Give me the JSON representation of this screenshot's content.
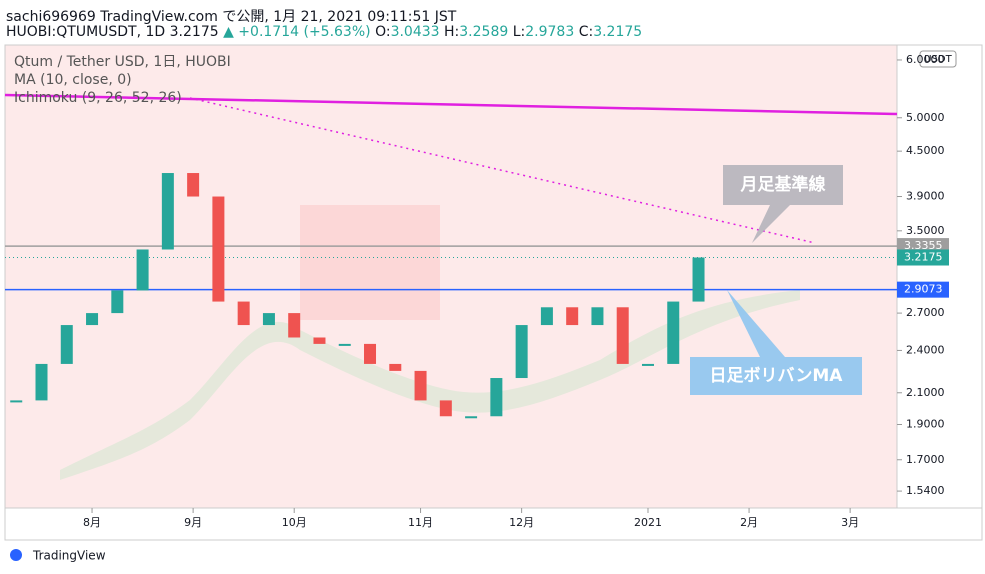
{
  "header": {
    "line1": "sachi696969 TradingView.com で公開, 1月 21, 2021 09:11:51 JST",
    "symbol": "HUOBI:QTUMUSDT, 1D 3.2175",
    "change": "▲ +0.1714 (+5.63%)",
    "o_label": "O:",
    "o": "3.0433",
    "h_label": "H:",
    "h": "3.2589",
    "l_label": "L:",
    "l": "2.9783",
    "c_label": "C:",
    "c": "3.2175"
  },
  "legend": [
    "Qtum / Tether USD, 1日, HUOBI",
    "MA (10, close, 0)",
    "Ichimoku (9, 26, 52, 26)"
  ],
  "annotations": [
    "月足基準線",
    "日足ボリバンMA"
  ],
  "currency": "USDT",
  "footer": "TradingView",
  "chart_data": {
    "type": "candlestick",
    "log_scale": true,
    "grid": false,
    "categories": [
      null,
      null,
      null,
      "8月",
      null,
      null,
      null,
      "9月",
      null,
      null,
      null,
      "10月",
      null,
      null,
      null,
      null,
      "11月",
      null,
      null,
      null,
      "12月",
      null,
      null,
      null,
      null,
      "2021",
      null,
      null,
      null,
      "2月",
      null,
      null,
      null,
      "3月",
      null
    ],
    "up_color": "#26a69a",
    "down_color": "#ef5350",
    "values": [
      2.05,
      2.3,
      2.6,
      2.7,
      2.9,
      3.3,
      4.2,
      3.9,
      2.8,
      2.6,
      2.7,
      2.5,
      2.45,
      2.45,
      2.3,
      2.25,
      2.05,
      1.95,
      1.95,
      2.2,
      2.6,
      2.75,
      2.6,
      2.75,
      2.3,
      2.3,
      2.8,
      3.2175,
      null,
      null,
      null,
      null,
      null,
      null,
      null
    ],
    "ylim": [
      1.46,
      6.29
    ],
    "yticks": [
      {
        "value": 6,
        "label": "6.0000"
      },
      {
        "value": 5,
        "label": "5.0000"
      },
      {
        "value": 4.5,
        "label": "4.5000"
      },
      {
        "value": 3.9,
        "label": "3.9000"
      },
      {
        "value": 3.5,
        "label": "3.5000"
      },
      {
        "value": 2.7,
        "label": "2.7000"
      },
      {
        "value": 2.4,
        "label": "2.4000"
      },
      {
        "value": 2.1,
        "label": "2.1000"
      },
      {
        "value": 1.9,
        "label": "1.9000"
      },
      {
        "value": 1.7,
        "label": "1.7000"
      },
      {
        "value": 1.54,
        "label": "1.5400"
      }
    ],
    "price_lines": [
      {
        "value": 3.3355,
        "color": "#9e9e9e"
      },
      {
        "value": 3.2175,
        "color": "#26a69a"
      },
      {
        "value": 2.9073,
        "color": "#2962ff"
      }
    ]
  }
}
